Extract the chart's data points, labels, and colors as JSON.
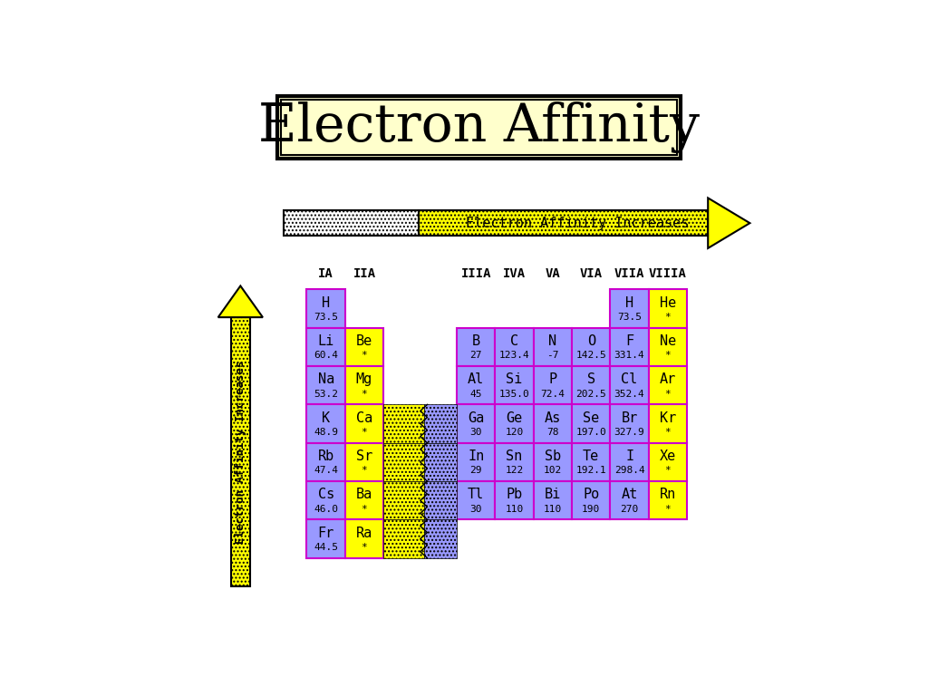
{
  "title": "Electron Affinity",
  "title_bg": "#FFFFCC",
  "arrow_label": "Electron Affinity Increases",
  "bg_color": "#FFFFFF",
  "yellow": "#FFFF00",
  "blue_cell": "#9999FF",
  "yellow_cell": "#FFFF00",
  "purple_border": "#CC00CC",
  "elements": [
    {
      "symbol": "H",
      "value": "73.5",
      "col": 0,
      "row": 0,
      "color": "blue"
    },
    {
      "symbol": "Li",
      "value": "60.4",
      "col": 0,
      "row": 1,
      "color": "blue"
    },
    {
      "symbol": "Na",
      "value": "53.2",
      "col": 0,
      "row": 2,
      "color": "blue"
    },
    {
      "symbol": "K",
      "value": "48.9",
      "col": 0,
      "row": 3,
      "color": "blue"
    },
    {
      "symbol": "Rb",
      "value": "47.4",
      "col": 0,
      "row": 4,
      "color": "blue"
    },
    {
      "symbol": "Cs",
      "value": "46.0",
      "col": 0,
      "row": 5,
      "color": "blue"
    },
    {
      "symbol": "Fr",
      "value": "44.5",
      "col": 0,
      "row": 6,
      "color": "blue"
    },
    {
      "symbol": "Be",
      "value": "*",
      "col": 1,
      "row": 1,
      "color": "yellow"
    },
    {
      "symbol": "Mg",
      "value": "*",
      "col": 1,
      "row": 2,
      "color": "yellow"
    },
    {
      "symbol": "Ca",
      "value": "*",
      "col": 1,
      "row": 3,
      "color": "yellow"
    },
    {
      "symbol": "Sr",
      "value": "*",
      "col": 1,
      "row": 4,
      "color": "yellow"
    },
    {
      "symbol": "Ba",
      "value": "*",
      "col": 1,
      "row": 5,
      "color": "yellow"
    },
    {
      "symbol": "Ra",
      "value": "*",
      "col": 1,
      "row": 6,
      "color": "yellow"
    },
    {
      "symbol": "B",
      "value": "27",
      "col": 2,
      "row": 1,
      "color": "blue"
    },
    {
      "symbol": "Al",
      "value": "45",
      "col": 2,
      "row": 2,
      "color": "blue"
    },
    {
      "symbol": "Ga",
      "value": "30",
      "col": 2,
      "row": 3,
      "color": "blue"
    },
    {
      "symbol": "In",
      "value": "29",
      "col": 2,
      "row": 4,
      "color": "blue"
    },
    {
      "symbol": "Tl",
      "value": "30",
      "col": 2,
      "row": 5,
      "color": "blue"
    },
    {
      "symbol": "C",
      "value": "123.4",
      "col": 3,
      "row": 1,
      "color": "blue"
    },
    {
      "symbol": "Si",
      "value": "135.0",
      "col": 3,
      "row": 2,
      "color": "blue"
    },
    {
      "symbol": "Ge",
      "value": "120",
      "col": 3,
      "row": 3,
      "color": "blue"
    },
    {
      "symbol": "Sn",
      "value": "122",
      "col": 3,
      "row": 4,
      "color": "blue"
    },
    {
      "symbol": "Pb",
      "value": "110",
      "col": 3,
      "row": 5,
      "color": "blue"
    },
    {
      "symbol": "N",
      "value": "-7",
      "col": 4,
      "row": 1,
      "color": "blue"
    },
    {
      "symbol": "P",
      "value": "72.4",
      "col": 4,
      "row": 2,
      "color": "blue"
    },
    {
      "symbol": "As",
      "value": "78",
      "col": 4,
      "row": 3,
      "color": "blue"
    },
    {
      "symbol": "Sb",
      "value": "102",
      "col": 4,
      "row": 4,
      "color": "blue"
    },
    {
      "symbol": "Bi",
      "value": "110",
      "col": 4,
      "row": 5,
      "color": "blue"
    },
    {
      "symbol": "O",
      "value": "142.5",
      "col": 5,
      "row": 1,
      "color": "blue"
    },
    {
      "symbol": "S",
      "value": "202.5",
      "col": 5,
      "row": 2,
      "color": "blue"
    },
    {
      "symbol": "Se",
      "value": "197.0",
      "col": 5,
      "row": 3,
      "color": "blue"
    },
    {
      "symbol": "Te",
      "value": "192.1",
      "col": 5,
      "row": 4,
      "color": "blue"
    },
    {
      "symbol": "Po",
      "value": "190",
      "col": 5,
      "row": 5,
      "color": "blue"
    },
    {
      "symbol": "H",
      "value": "73.5",
      "col": 6,
      "row": 0,
      "color": "blue"
    },
    {
      "symbol": "F",
      "value": "331.4",
      "col": 6,
      "row": 1,
      "color": "blue"
    },
    {
      "symbol": "Cl",
      "value": "352.4",
      "col": 6,
      "row": 2,
      "color": "blue"
    },
    {
      "symbol": "Br",
      "value": "327.9",
      "col": 6,
      "row": 3,
      "color": "blue"
    },
    {
      "symbol": "I",
      "value": "298.4",
      "col": 6,
      "row": 4,
      "color": "blue"
    },
    {
      "symbol": "At",
      "value": "270",
      "col": 6,
      "row": 5,
      "color": "blue"
    },
    {
      "symbol": "He",
      "value": "*",
      "col": 7,
      "row": 0,
      "color": "yellow"
    },
    {
      "symbol": "Ne",
      "value": "*",
      "col": 7,
      "row": 1,
      "color": "yellow"
    },
    {
      "symbol": "Ar",
      "value": "*",
      "col": 7,
      "row": 2,
      "color": "yellow"
    },
    {
      "symbol": "Kr",
      "value": "*",
      "col": 7,
      "row": 3,
      "color": "yellow"
    },
    {
      "symbol": "Xe",
      "value": "*",
      "col": 7,
      "row": 4,
      "color": "yellow"
    },
    {
      "symbol": "Rn",
      "value": "*",
      "col": 7,
      "row": 5,
      "color": "yellow"
    }
  ],
  "group_headers_cols": [
    0,
    1,
    2,
    3,
    4,
    5,
    6,
    7
  ],
  "group_headers_labels": [
    "IA",
    "IIA",
    "IIIA",
    "IVA",
    "VA",
    "VIA",
    "VIIA",
    "VIIIA"
  ]
}
